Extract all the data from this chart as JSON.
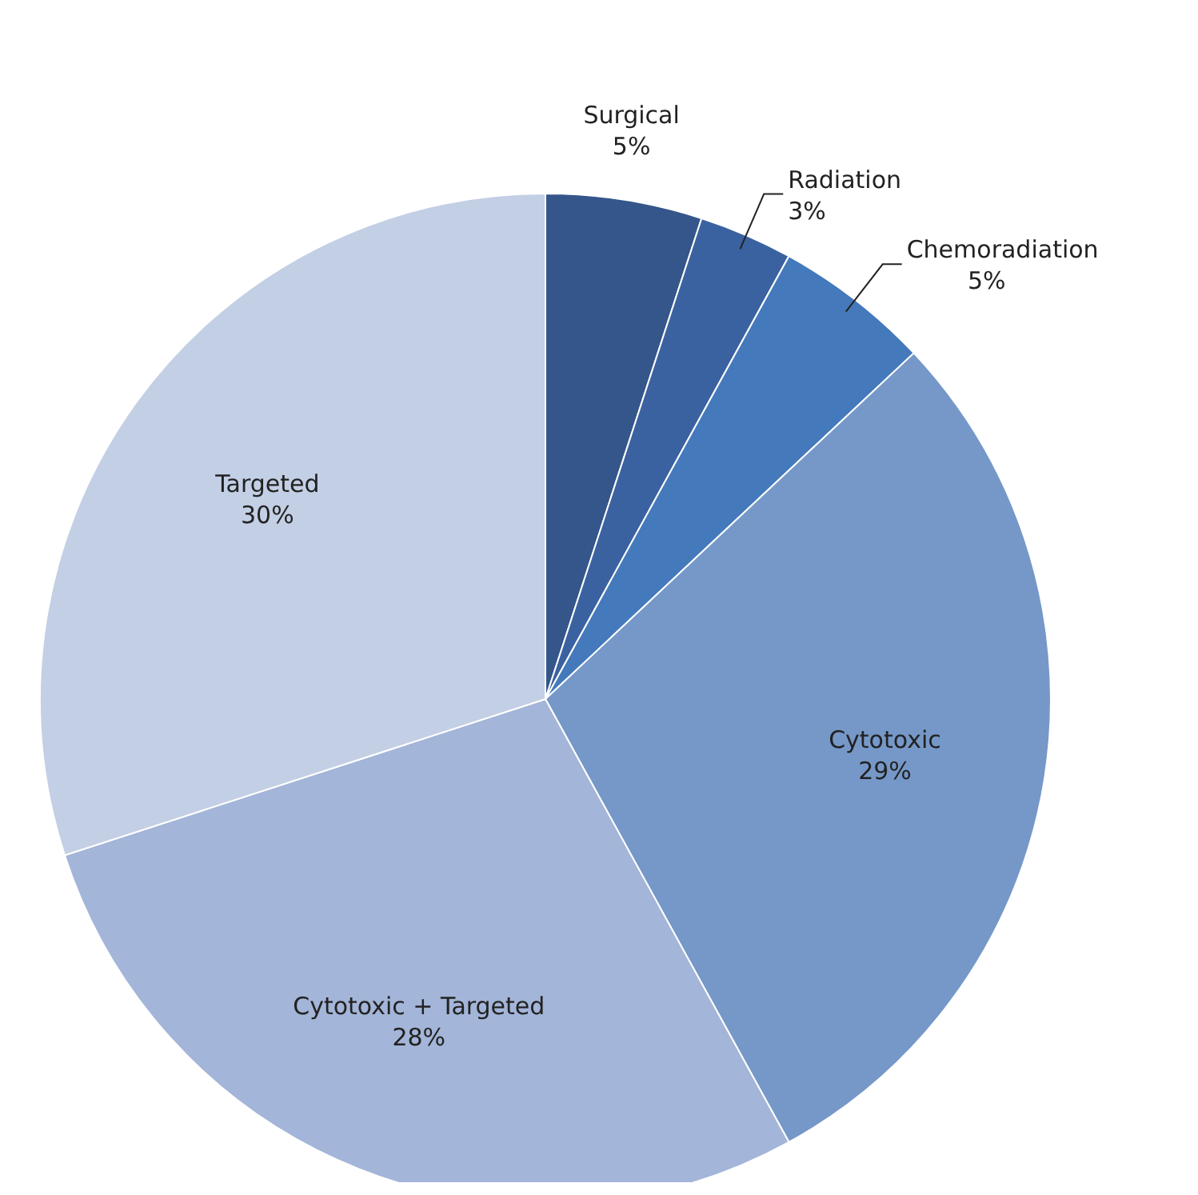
{
  "chart_data": {
    "type": "pie",
    "categories": [
      "Surgical",
      "Radiation",
      "Chemoradiation",
      "Cytotoxic",
      "Cytotoxic + Targeted",
      "Targeted"
    ],
    "values": [
      5,
      3,
      5,
      29,
      28,
      30
    ],
    "value_labels": [
      "5%",
      "3%",
      "5%",
      "29%",
      "28%",
      "30%"
    ],
    "colors": [
      "#34568a",
      "#3b62a0",
      "#4479bb",
      "#7598c8",
      "#a3b5d8",
      "#c3cfe5"
    ],
    "legend": false
  }
}
